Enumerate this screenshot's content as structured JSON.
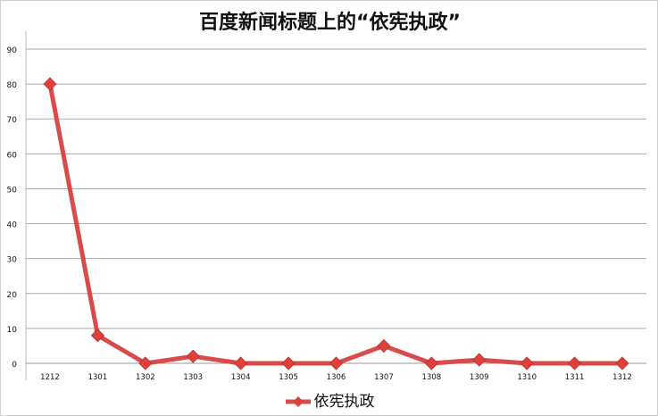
{
  "chart_data": {
    "type": "line",
    "title": "百度新闻标题上的“依宪执政”",
    "categories": [
      "1212",
      "1301",
      "1302",
      "1303",
      "1304",
      "1305",
      "1306",
      "1307",
      "1308",
      "1309",
      "1310",
      "1311",
      "1312"
    ],
    "series": [
      {
        "name": "依宪执政",
        "values": [
          80,
          8,
          0,
          2,
          0,
          0,
          0,
          5,
          0,
          1,
          0,
          0,
          0
        ],
        "color": "#d94b4b"
      }
    ],
    "ylim": [
      0,
      90
    ],
    "yticks": [
      0,
      10,
      20,
      30,
      40,
      50,
      60,
      70,
      80,
      90
    ],
    "grid": true,
    "legend": "bottom",
    "xlabel": "",
    "ylabel": ""
  }
}
